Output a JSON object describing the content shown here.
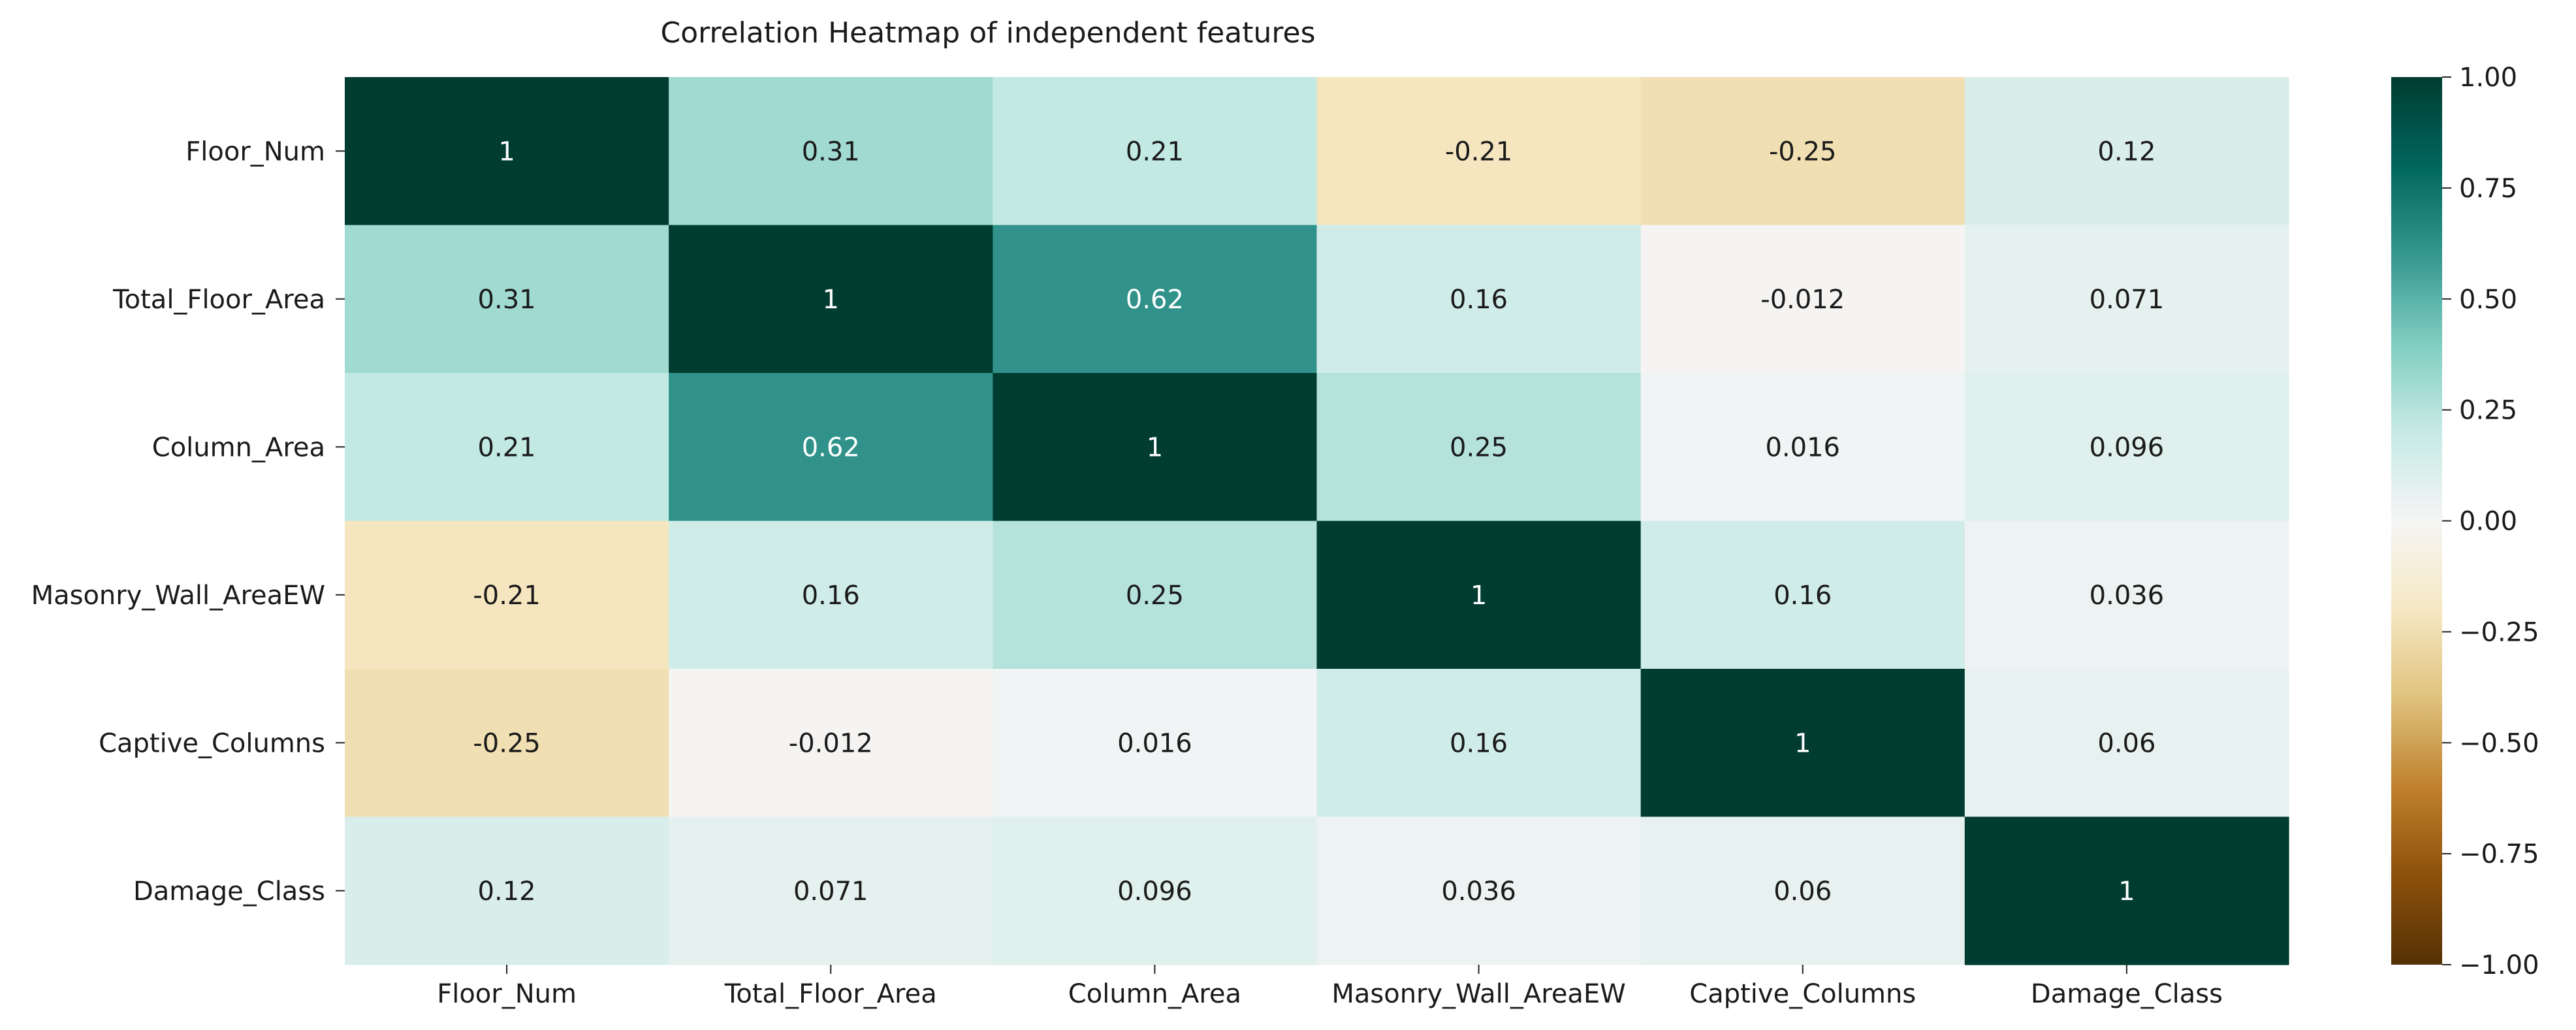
{
  "chart_data": {
    "type": "heatmap",
    "title": "Correlation Heatmap of independent features",
    "rows": [
      "Floor_Num",
      "Total_Floor_Area",
      "Column_Area",
      "Masonry_Wall_AreaEW",
      "Captive_Columns",
      "Damage_Class"
    ],
    "columns": [
      "Floor_Num",
      "Total_Floor_Area",
      "Column_Area",
      "Masonry_Wall_AreaEW",
      "Captive_Columns",
      "Damage_Class"
    ],
    "values": [
      [
        1,
        0.31,
        0.21,
        -0.21,
        -0.25,
        0.12
      ],
      [
        0.31,
        1,
        0.62,
        0.16,
        -0.012,
        0.071
      ],
      [
        0.21,
        0.62,
        1,
        0.25,
        0.016,
        0.096
      ],
      [
        -0.21,
        0.16,
        0.25,
        1,
        0.16,
        0.036
      ],
      [
        -0.25,
        -0.012,
        0.016,
        0.16,
        1,
        0.06
      ],
      [
        0.12,
        0.071,
        0.096,
        0.036,
        0.06,
        1
      ]
    ],
    "value_labels": [
      [
        "1",
        "0.31",
        "0.21",
        "-0.21",
        "-0.25",
        "0.12"
      ],
      [
        "0.31",
        "1",
        "0.62",
        "0.16",
        "-0.012",
        "0.071"
      ],
      [
        "0.21",
        "0.62",
        "1",
        "0.25",
        "0.016",
        "0.096"
      ],
      [
        "-0.21",
        "0.16",
        "0.25",
        "1",
        "0.16",
        "0.036"
      ],
      [
        "-0.25",
        "-0.012",
        "0.016",
        "0.16",
        "1",
        "0.06"
      ],
      [
        "0.12",
        "0.071",
        "0.096",
        "0.036",
        "0.06",
        "1"
      ]
    ],
    "colorbar": {
      "range": [
        -1,
        1
      ],
      "ticks": [
        1,
        0.75,
        0.5,
        0.25,
        0,
        -0.25,
        -0.5,
        -0.75,
        -1
      ],
      "tick_labels": [
        "1.00",
        "0.75",
        "0.50",
        "0.25",
        "0.00",
        "−0.25",
        "−0.50",
        "−0.75",
        "−1.00"
      ],
      "colormap": "BrBG",
      "color_stops": [
        "#543005",
        "#8c510a",
        "#bf812d",
        "#dfc27d",
        "#f6e8c3",
        "#f5f5f5",
        "#c7eae5",
        "#80cdc1",
        "#35978f",
        "#01665e",
        "#003c30"
      ]
    },
    "grid": false,
    "legend": "right"
  }
}
